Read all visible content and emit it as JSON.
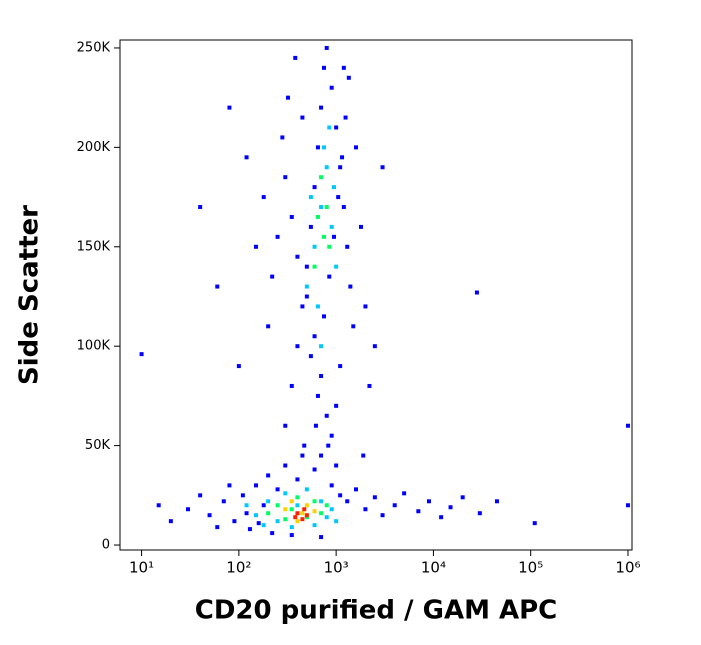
{
  "chart_data": {
    "type": "scatter",
    "xlabel": "CD20 purified / GAM APC",
    "ylabel": "Side Scatter",
    "xscale": "log",
    "xlim": [
      6,
      1100000
    ],
    "xticks": [
      {
        "value": 10,
        "label": "10¹"
      },
      {
        "value": 100,
        "label": "10²"
      },
      {
        "value": 1000,
        "label": "10³"
      },
      {
        "value": 10000,
        "label": "10⁴"
      },
      {
        "value": 100000,
        "label": "10⁵"
      },
      {
        "value": 1000000,
        "label": "10⁶"
      }
    ],
    "ylim": [
      -2500,
      254000
    ],
    "yticks": [
      0,
      {
        "value": 50000,
        "label": "50K"
      },
      {
        "value": 100000,
        "label": "100K"
      },
      {
        "value": 150000,
        "label": "150K"
      },
      {
        "value": 200000,
        "label": "200K"
      },
      {
        "value": 250000,
        "label": "250K"
      }
    ],
    "series": [
      {
        "color": "#0000ff",
        "x": [
          30,
          50,
          70,
          90,
          110,
          130,
          150,
          180,
          200,
          220,
          250,
          300,
          350,
          400,
          450,
          600,
          700,
          900,
          1100,
          1300,
          1600,
          2000,
          2500,
          3000,
          4000,
          5000,
          7000,
          9000,
          12000,
          15000,
          20000,
          30000,
          45000,
          15,
          20,
          40,
          60,
          80,
          120,
          160,
          300,
          350,
          400,
          450,
          500,
          550,
          600,
          650,
          700,
          750,
          800,
          900,
          1000,
          1100,
          1200,
          1300,
          1400,
          1500,
          1100,
          1000,
          900,
          800,
          700,
          600,
          500,
          400,
          350,
          300,
          250,
          220,
          280,
          320,
          380,
          1600,
          1800,
          2000,
          2200,
          1900,
          200,
          180,
          150,
          120,
          100,
          60,
          40,
          80,
          2500,
          3000,
          1200,
          450,
          550,
          650,
          750,
          850,
          950,
          1050,
          1150,
          1250,
          1350,
          470,
          620,
          830,
          1000,
          700,
          10,
          28000,
          110000,
          1000000,
          1000000
        ],
        "y": [
          18000,
          15000,
          22000,
          12000,
          25000,
          8000,
          30000,
          20000,
          35000,
          6000,
          28000,
          40000,
          5000,
          33000,
          45000,
          38000,
          4000,
          30000,
          25000,
          22000,
          28000,
          18000,
          24000,
          15000,
          20000,
          26000,
          17000,
          22000,
          14000,
          19000,
          24000,
          16000,
          22000,
          20000,
          12000,
          25000,
          9000,
          30000,
          16000,
          11000,
          60000,
          80000,
          100000,
          120000,
          140000,
          160000,
          180000,
          200000,
          220000,
          240000,
          250000,
          230000,
          210000,
          190000,
          170000,
          150000,
          130000,
          110000,
          90000,
          70000,
          55000,
          65000,
          85000,
          105000,
          125000,
          145000,
          165000,
          185000,
          155000,
          135000,
          205000,
          225000,
          245000,
          200000,
          160000,
          120000,
          80000,
          45000,
          110000,
          175000,
          150000,
          195000,
          90000,
          130000,
          170000,
          220000,
          100000,
          190000,
          240000,
          215000,
          95000,
          75000,
          115000,
          135000,
          155000,
          175000,
          195000,
          215000,
          235000,
          50000,
          60000,
          50000,
          40000,
          45000,
          96000,
          127000,
          11000,
          20000,
          60000
        ]
      },
      {
        "color": "#00c8ff",
        "x": [
          150,
          200,
          250,
          300,
          350,
          400,
          500,
          600,
          700,
          800,
          120,
          900,
          1000,
          180,
          500,
          600,
          700,
          800,
          900,
          1000,
          650,
          750,
          550,
          850,
          700,
          950
        ],
        "y": [
          15000,
          22000,
          12000,
          26000,
          9000,
          20000,
          28000,
          10000,
          22000,
          14000,
          20000,
          18000,
          12000,
          10000,
          130000,
          150000,
          170000,
          190000,
          160000,
          140000,
          120000,
          200000,
          175000,
          210000,
          100000,
          180000
        ]
      },
      {
        "color": "#00ff60",
        "x": [
          200,
          250,
          300,
          400,
          500,
          600,
          700,
          350,
          800,
          650,
          750,
          700,
          800,
          600,
          850
        ],
        "y": [
          16000,
          20000,
          13000,
          24000,
          14000,
          22000,
          16000,
          18000,
          20000,
          165000,
          155000,
          185000,
          170000,
          140000,
          150000
        ]
      },
      {
        "color": "#ffd200",
        "x": [
          300,
          400,
          500,
          600,
          350,
          450
        ],
        "y": [
          18000,
          12000,
          20000,
          17000,
          22000,
          16000
        ]
      },
      {
        "color": "#ff2000",
        "x": [
          400,
          450,
          500,
          380,
          470
        ],
        "y": [
          16000,
          13000,
          15000,
          14000,
          18000
        ]
      }
    ]
  }
}
